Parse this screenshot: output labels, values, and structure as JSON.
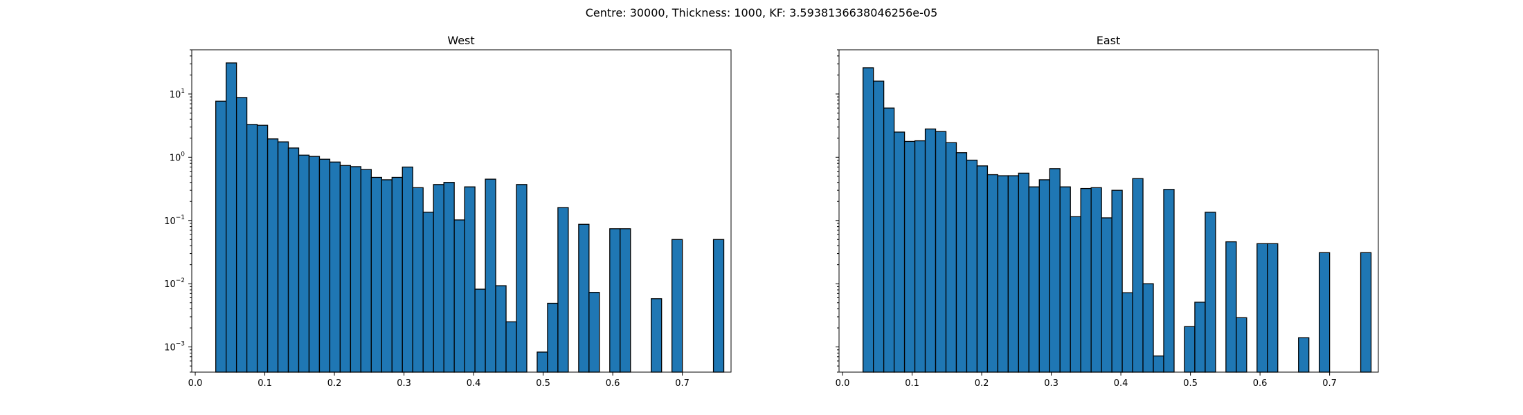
{
  "figure": {
    "suptitle": "Centre: 30000, Thickness: 1000, KF: 3.5938136638046256e-05"
  },
  "chart_data": [
    {
      "type": "bar",
      "title": "West",
      "xlabel": "",
      "ylabel": "",
      "yscale": "log",
      "xlim": [
        -0.005,
        0.77
      ],
      "ylim": [
        0.0004,
        50
      ],
      "grid": false,
      "xticks": [
        "0.0",
        "0.1",
        "0.2",
        "0.3",
        "0.4",
        "0.5",
        "0.6",
        "0.7"
      ],
      "yticks": [
        {
          "base": "10",
          "exp": "1"
        },
        {
          "base": "10",
          "exp": "0"
        },
        {
          "base": "10",
          "exp": "−1"
        },
        {
          "base": "10",
          "exp": "−2"
        },
        {
          "base": "10",
          "exp": "−3"
        }
      ],
      "bin_start": 0.0295,
      "bin_width": 0.0149,
      "values": [
        7.7,
        31,
        8.8,
        3.3,
        3.2,
        1.95,
        1.75,
        1.4,
        1.08,
        1.03,
        0.93,
        0.84,
        0.74,
        0.71,
        0.64,
        0.48,
        0.44,
        0.48,
        0.7,
        0.33,
        0.135,
        0.37,
        0.4,
        0.102,
        0.34,
        0.0082,
        0.45,
        0.0093,
        0.0025,
        0.37,
        0,
        0.00083,
        0.0049,
        0.16,
        0,
        0.087,
        0.0073,
        0,
        0.074,
        0.074,
        0,
        0,
        0.0058,
        0,
        0.05,
        0,
        0,
        0,
        0.05
      ]
    },
    {
      "type": "bar",
      "title": "East",
      "xlabel": "",
      "ylabel": "",
      "yscale": "log",
      "xlim": [
        -0.005,
        0.77
      ],
      "ylim": [
        0.0004,
        50
      ],
      "grid": false,
      "xticks": [
        "0.0",
        "0.1",
        "0.2",
        "0.3",
        "0.4",
        "0.5",
        "0.6",
        "0.7"
      ],
      "yticks": [],
      "bin_start": 0.0295,
      "bin_width": 0.0149,
      "values": [
        26,
        16,
        6.0,
        2.5,
        1.78,
        1.82,
        2.8,
        2.55,
        1.7,
        1.18,
        0.9,
        0.73,
        0.53,
        0.51,
        0.51,
        0.56,
        0.34,
        0.44,
        0.66,
        0.34,
        0.115,
        0.32,
        0.33,
        0.11,
        0.3,
        0.0072,
        0.46,
        0.01,
        0.00072,
        0.31,
        0,
        0.0021,
        0.0051,
        0.135,
        0,
        0.046,
        0.0029,
        0,
        0.043,
        0.043,
        0,
        0,
        0.0014,
        0,
        0.031,
        0,
        0,
        0,
        0.031
      ]
    }
  ]
}
